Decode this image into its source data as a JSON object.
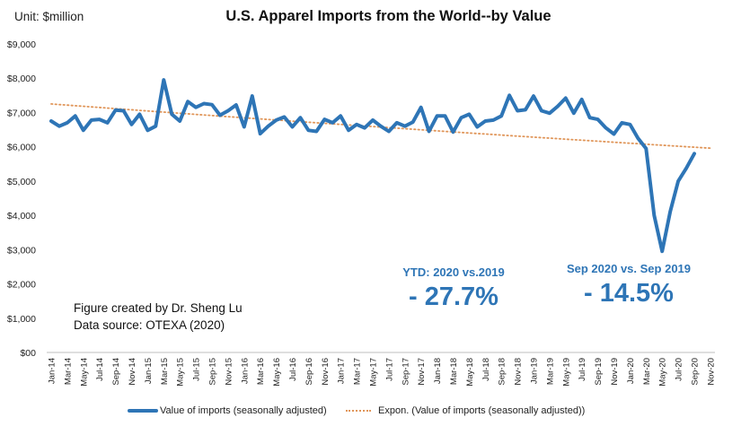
{
  "unit_label": "Unit: $million",
  "credit": {
    "line1": "Figure created by Dr. Sheng Lu",
    "line2": "Data source: OTEXA (2020)"
  },
  "annotations": [
    {
      "label": "YTD: 2020  vs.2019",
      "value": "- 27.7%"
    },
    {
      "label": "Sep 2020 vs. Sep 2019",
      "value": "- 14.5%"
    }
  ],
  "colors": {
    "series": "#2E75B6",
    "trend": "#E0965A",
    "axis": "#BFBFBF",
    "annotation": "#2E75B6"
  },
  "chart_data": {
    "type": "line",
    "title": "U.S. Apparel Imports from the World--by Value",
    "xlabel": "",
    "ylabel": "Unit: $million",
    "ylim": [
      0,
      9000
    ],
    "yticks": [
      0,
      1000,
      2000,
      3000,
      4000,
      5000,
      6000,
      7000,
      8000,
      9000
    ],
    "ytick_labels": [
      "$00",
      "$1,000",
      "$2,000",
      "$3,000",
      "$4,000",
      "$5,000",
      "$6,000",
      "$7,000",
      "$8,000",
      "$9,000"
    ],
    "grid": false,
    "legend_position": "bottom",
    "x_tick_labels": [
      "Jan-14",
      "Mar-14",
      "May-14",
      "Jul-14",
      "Sep-14",
      "Nov-14",
      "Jan-15",
      "Mar-15",
      "May-15",
      "Jul-15",
      "Sep-15",
      "Nov-15",
      "Jan-16",
      "Mar-16",
      "May-16",
      "Jul-16",
      "Sep-16",
      "Nov-16",
      "Jan-17",
      "Mar-17",
      "May-17",
      "Jul-17",
      "Sep-17",
      "Nov-17",
      "Jan-18",
      "Mar-18",
      "May-18",
      "Jul-18",
      "Sep-18",
      "Nov-18",
      "Jan-19",
      "Mar-19",
      "May-19",
      "Jul-19",
      "Sep-19",
      "Nov-19",
      "Jan-20",
      "Mar-20",
      "May-20",
      "Jul-20",
      "Sep-20",
      "Nov-20"
    ],
    "x_months_total": 83,
    "series": [
      {
        "name": "Value of imports (seasonally adjusted)",
        "style": "solid",
        "values": [
          6750,
          6600,
          6700,
          6900,
          6480,
          6780,
          6800,
          6700,
          7070,
          7050,
          6650,
          6950,
          6480,
          6600,
          7950,
          6950,
          6750,
          7320,
          7150,
          7260,
          7230,
          6920,
          7050,
          7220,
          6580,
          7480,
          6380,
          6600,
          6780,
          6870,
          6580,
          6850,
          6480,
          6450,
          6800,
          6700,
          6900,
          6480,
          6650,
          6550,
          6780,
          6600,
          6450,
          6700,
          6600,
          6720,
          7150,
          6450,
          6900,
          6900,
          6430,
          6850,
          6950,
          6580,
          6750,
          6780,
          6900,
          7500,
          7050,
          7080,
          7480,
          7050,
          6980,
          7180,
          7420,
          6980,
          7380,
          6850,
          6800,
          6550,
          6370,
          6700,
          6650,
          6250,
          5950,
          4000,
          2950,
          4100,
          5000,
          5370,
          5800
        ]
      },
      {
        "name": "Expon. (Value of imports (seasonally adjusted))",
        "style": "dotted",
        "trend_range": [
          7250,
          5960
        ]
      }
    ]
  }
}
